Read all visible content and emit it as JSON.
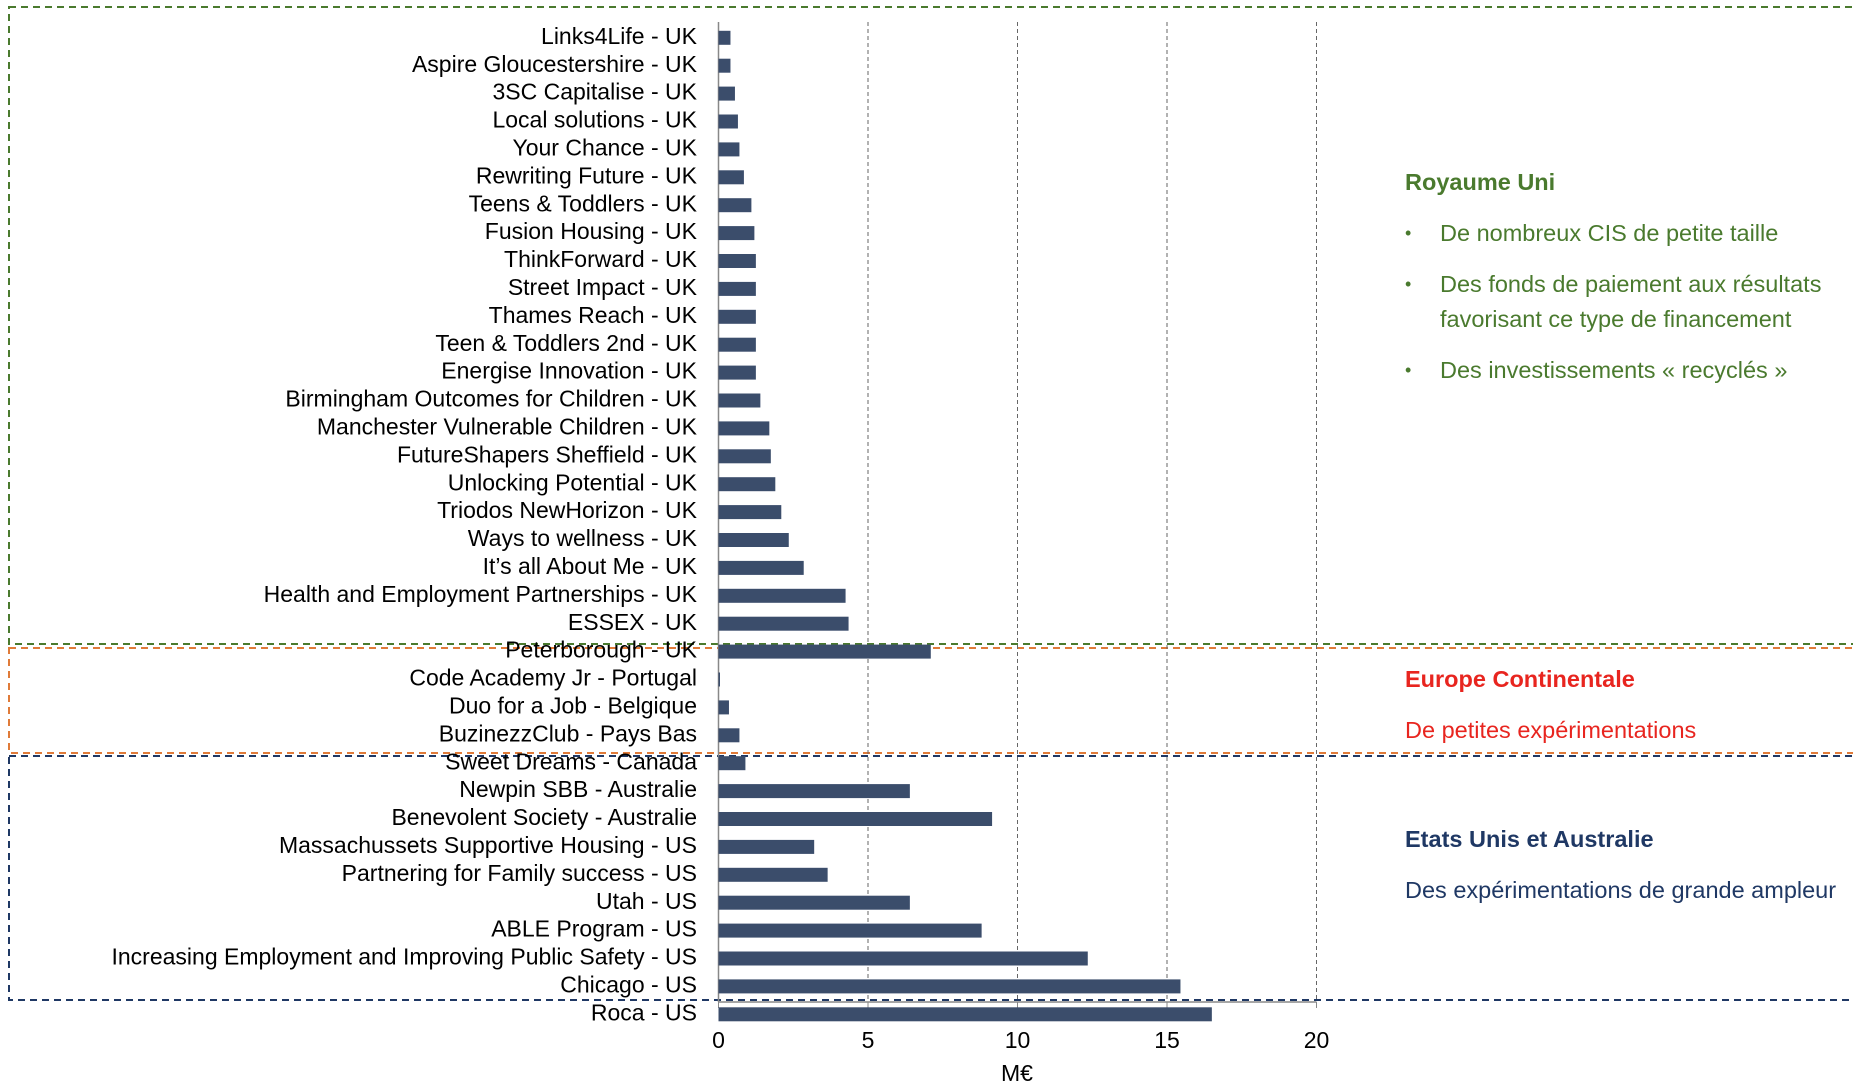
{
  "chart_data": {
    "type": "hbar",
    "xlabel": "M€",
    "categories": [
      "Links4Life - UK",
      "Aspire Gloucestershire - UK",
      "3SC Capitalise - UK",
      "Local solutions - UK",
      "Your Chance - UK",
      "Rewriting Future - UK",
      "Teens & Toddlers - UK",
      "Fusion Housing - UK",
      "ThinkForward - UK",
      "Street Impact - UK",
      "Thames Reach - UK",
      "Teen & Toddlers 2nd - UK",
      "Energise Innovation - UK",
      "Birmingham Outcomes for Children - UK",
      "Manchester Vulnerable Children - UK",
      "FutureShapers Sheffield - UK",
      "Unlocking Potential - UK",
      "Triodos NewHorizon - UK",
      "Ways to wellness - UK",
      "It’s all About Me - UK",
      "Health and Employment Partnerships - UK",
      "ESSEX - UK",
      "Peterborough - UK",
      "Code Academy Jr - Portugal",
      "Duo for a Job - Belgique",
      "BuzinezzClub - Pays Bas",
      "Sweet Dreams - Canada",
      "Newpin SBB - Australie",
      "Benevolent Society - Australie",
      "Massachussets Supportive Housing - US",
      "Partnering for Family success - US",
      "Utah - US",
      "ABLE Program - US",
      "Increasing Employment and Improving Public Safety - US",
      "Chicago - US",
      "Roca - US"
    ],
    "values": [
      0.4,
      0.4,
      0.55,
      0.65,
      0.7,
      0.85,
      1.1,
      1.2,
      1.25,
      1.25,
      1.25,
      1.25,
      1.25,
      1.4,
      1.7,
      1.75,
      1.9,
      2.1,
      2.35,
      2.85,
      4.25,
      4.35,
      7.1,
      0.05,
      0.35,
      0.7,
      0.9,
      6.4,
      9.15,
      3.2,
      3.65,
      6.4,
      8.8,
      12.35,
      15.45,
      16.5
    ],
    "color": "#3b4d6b",
    "xlim": [
      0,
      20
    ],
    "xticks": [
      0,
      5,
      10,
      15,
      20
    ],
    "grid": true,
    "annotations": [
      {
        "title": "Royaume Uni",
        "color": "#4a7a2e",
        "items": [
          "De nombreux CIS de petite taille",
          "Des fonds de paiement aux résultats favorisant ce type de financement",
          "Des investissements « recyclés »"
        ]
      },
      {
        "title": "Europe Continentale",
        "color": "#e8251f",
        "box": "#e07b39",
        "text": "De petites expérimentations"
      },
      {
        "title": "Etats Unis et Australie",
        "color": "#1f3864",
        "text": "Des expérimentations de grande ampleur"
      }
    ]
  }
}
